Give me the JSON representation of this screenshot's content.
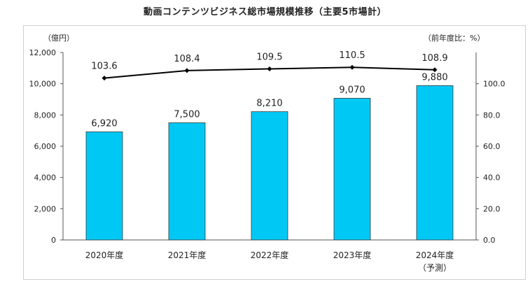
{
  "title": "動画コンテンツビジネス総市場規模推移（主要5市場計）",
  "chart_data": {
    "type": "bar",
    "categories": [
      "2020年度",
      "2021年度",
      "2022年度",
      "2023年度",
      "2024年度"
    ],
    "category_sublabels": [
      "",
      "",
      "",
      "",
      "（予測）"
    ],
    "series": [
      {
        "values": [
          6920,
          7500,
          8210,
          9070,
          9880
        ],
        "labels": [
          "6,920",
          "7,500",
          "8,210",
          "9,070",
          "9,880"
        ],
        "color": "#00c8f5",
        "axis": "left"
      },
      {
        "type": "line",
        "values": [
          103.6,
          108.4,
          109.5,
          110.5,
          108.9
        ],
        "labels": [
          "103.6",
          "108.4",
          "109.5",
          "110.5",
          "108.9"
        ],
        "color": "#000000",
        "axis": "right"
      }
    ],
    "ylabel": "（億円）",
    "ylim": [
      0,
      12000
    ],
    "yticks": [
      "0",
      "2,000",
      "4,000",
      "6,000",
      "8,000",
      "10,000",
      "12,000"
    ],
    "y2label": "（前年度比：%）",
    "y2lim": [
      0,
      120
    ],
    "y2ticks": [
      "0.0",
      "20.0",
      "40.0",
      "60.0",
      "80.0",
      "100.0"
    ],
    "grid": false
  }
}
